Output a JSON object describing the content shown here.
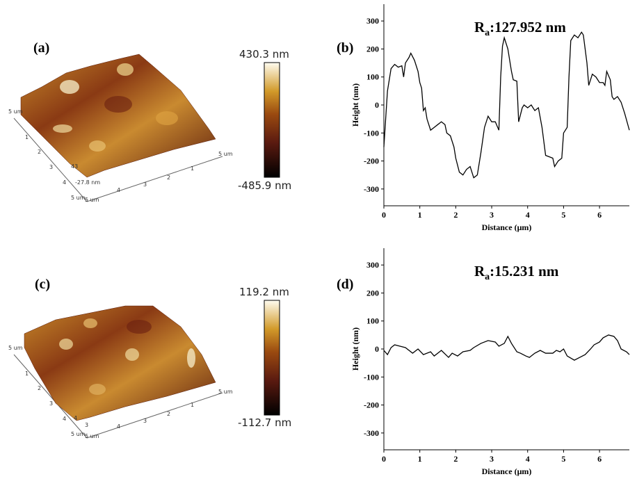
{
  "figure": {
    "labels": [
      "(a)",
      "(b)",
      "(c)",
      "(d)"
    ],
    "afm": [
      {
        "colorbar_max": "430.3 nm",
        "colorbar_min": "-485.9 nm",
        "axis_labels": [
          "5 um",
          "1",
          "2",
          "3",
          "4",
          "5 um",
          "4",
          "3",
          "2",
          "1",
          "5 um",
          "43",
          "-27.8 nm",
          "5 um"
        ]
      },
      {
        "colorbar_max": "119.2 nm",
        "colorbar_min": "-112.7 nm",
        "axis_labels": [
          "5 um",
          "1",
          "2",
          "3",
          "4",
          "5 um",
          "4",
          "3",
          "2",
          "1",
          "5 um",
          "4",
          "3",
          "5 um"
        ]
      }
    ]
  },
  "chart_data": [
    {
      "type": "line",
      "xlabel": "Distance (μm)",
      "ylabel": "Height (nm)",
      "annotation": {
        "symbol": "R",
        "subscript": "a",
        "text": ":127.952 nm"
      },
      "xlim": [
        0,
        6.83
      ],
      "ylim": [
        -360,
        360
      ],
      "xticks": [
        0,
        1,
        2,
        3,
        4,
        5,
        6
      ],
      "yticks": [
        -300,
        -200,
        -100,
        0,
        100,
        200,
        300
      ],
      "x": [
        0,
        0.05,
        0.1,
        0.2,
        0.3,
        0.4,
        0.5,
        0.55,
        0.6,
        0.7,
        0.75,
        0.85,
        0.95,
        1.0,
        1.05,
        1.1,
        1.15,
        1.2,
        1.3,
        1.4,
        1.5,
        1.6,
        1.7,
        1.75,
        1.85,
        1.95,
        2.0,
        2.1,
        2.2,
        2.3,
        2.4,
        2.5,
        2.6,
        2.7,
        2.8,
        2.9,
        3.0,
        3.1,
        3.2,
        3.25,
        3.3,
        3.35,
        3.45,
        3.55,
        3.6,
        3.7,
        3.75,
        3.85,
        3.9,
        4.0,
        4.1,
        4.2,
        4.3,
        4.4,
        4.5,
        4.6,
        4.7,
        4.75,
        4.85,
        4.95,
        5.0,
        5.1,
        5.15,
        5.2,
        5.3,
        5.4,
        5.5,
        5.55,
        5.65,
        5.7,
        5.8,
        5.9,
        6.0,
        6.1,
        6.15,
        6.2,
        6.3,
        6.35,
        6.4,
        6.5,
        6.6,
        6.7,
        6.83
      ],
      "series": [
        {
          "color": "#000000",
          "values": [
            -150,
            -50,
            50,
            130,
            145,
            135,
            140,
            100,
            150,
            170,
            185,
            160,
            120,
            80,
            60,
            -20,
            -10,
            -50,
            -90,
            -80,
            -70,
            -60,
            -70,
            -100,
            -110,
            -150,
            -190,
            -240,
            -250,
            -230,
            -220,
            -260,
            -250,
            -170,
            -80,
            -40,
            -60,
            -60,
            -90,
            100,
            210,
            240,
            200,
            120,
            90,
            85,
            -60,
            -10,
            0,
            -10,
            0,
            -20,
            -10,
            -80,
            -180,
            -185,
            -190,
            -220,
            -200,
            -190,
            -100,
            -80,
            100,
            230,
            250,
            240,
            260,
            250,
            150,
            70,
            110,
            100,
            80,
            80,
            70,
            120,
            90,
            30,
            20,
            30,
            10,
            -30,
            -90
          ]
        }
      ]
    },
    {
      "type": "line",
      "xlabel": "Distance (μm)",
      "ylabel": "Height (nm)",
      "annotation": {
        "symbol": "R",
        "subscript": "a",
        "text": ":15.231 nm"
      },
      "xlim": [
        0,
        6.83
      ],
      "ylim": [
        -360,
        360
      ],
      "xticks": [
        0,
        1,
        2,
        3,
        4,
        5,
        6
      ],
      "yticks": [
        -300,
        -200,
        -100,
        0,
        100,
        200,
        300
      ],
      "x": [
        0,
        0.1,
        0.2,
        0.3,
        0.45,
        0.6,
        0.8,
        0.95,
        1.1,
        1.3,
        1.4,
        1.6,
        1.8,
        1.9,
        2.05,
        2.2,
        2.4,
        2.5,
        2.7,
        2.9,
        3.1,
        3.2,
        3.35,
        3.45,
        3.55,
        3.7,
        3.8,
        3.95,
        4.05,
        4.2,
        4.35,
        4.5,
        4.7,
        4.8,
        4.9,
        5.0,
        5.1,
        5.3,
        5.45,
        5.6,
        5.75,
        5.85,
        6.0,
        6.1,
        6.25,
        6.4,
        6.5,
        6.6,
        6.75,
        6.83
      ],
      "series": [
        {
          "color": "#000000",
          "values": [
            -5,
            -20,
            5,
            15,
            10,
            5,
            -15,
            0,
            -20,
            -10,
            -25,
            -5,
            -30,
            -15,
            -25,
            -10,
            -5,
            5,
            20,
            30,
            25,
            10,
            20,
            45,
            20,
            -10,
            -15,
            -25,
            -30,
            -15,
            -5,
            -15,
            -15,
            -5,
            -10,
            0,
            -25,
            -40,
            -30,
            -20,
            0,
            15,
            25,
            40,
            50,
            45,
            30,
            0,
            -10,
            -20
          ]
        }
      ]
    }
  ]
}
